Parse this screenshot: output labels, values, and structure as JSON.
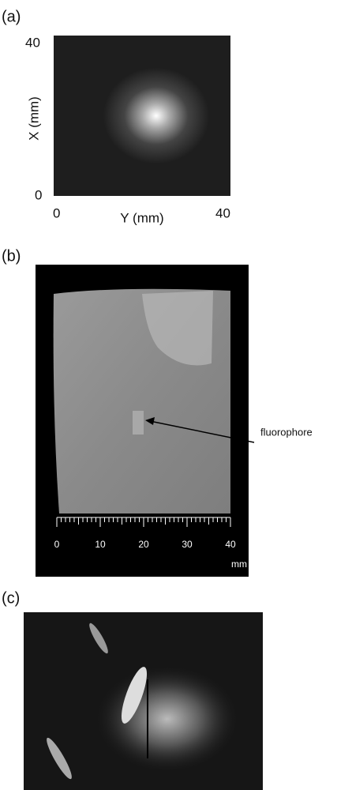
{
  "panels": [
    {
      "label": "(a)",
      "y_axis": {
        "title": "X (mm)",
        "top": "40",
        "bottom": "0"
      },
      "x_axis": {
        "title": "Y (mm)",
        "left": "0",
        "right": "40"
      }
    },
    {
      "label": "(b)",
      "annotation": "fluorophore",
      "scale": {
        "ticks": [
          "0",
          "10",
          "20",
          "30",
          "40"
        ],
        "unit": "mm"
      }
    },
    {
      "label": "(c)"
    }
  ]
}
